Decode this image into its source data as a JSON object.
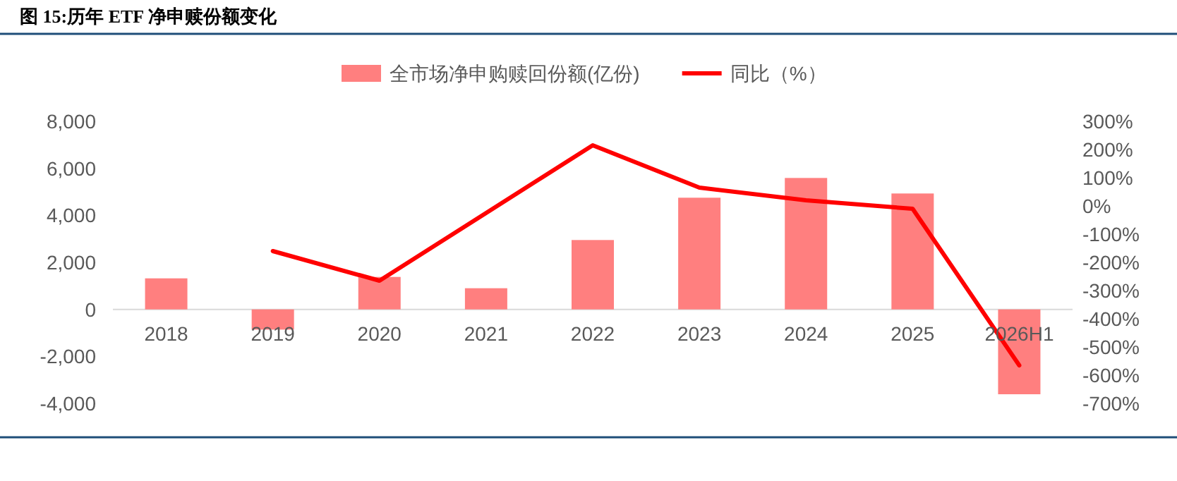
{
  "chart_data": {
    "type": "bar",
    "title": "图 15:历年 ETF 净申赎份额变化",
    "categories": [
      "2018",
      "2019",
      "2020",
      "2021",
      "2022",
      "2023",
      "2024",
      "2025",
      "2026H1"
    ],
    "series": [
      {
        "name": "全市场净申购赎回份额(亿份)",
        "color": "#ff7f7f",
        "values": [
          1320,
          -860,
          1380,
          900,
          2950,
          4750,
          5590,
          4930,
          -3610
        ]
      },
      {
        "name": "同比（%）",
        "type": "line",
        "axis": "y2",
        "color": "#ff0000",
        "values": [
          null,
          -160,
          -265,
          -25,
          215,
          65,
          20,
          -10,
          -565
        ]
      }
    ],
    "ylim": [
      -4000,
      8000
    ],
    "yticks": [
      {
        "value": -4000,
        "label": "-4,000"
      },
      {
        "value": -2000,
        "label": "-2,000"
      },
      0,
      {
        "value": 2000,
        "label": "2,000"
      },
      {
        "value": 4000,
        "label": "4,000"
      },
      {
        "value": 6000,
        "label": "6,000"
      },
      {
        "value": 8000,
        "label": "8,000"
      }
    ],
    "y2lim": [
      -700,
      300
    ],
    "y2ticks": [
      {
        "value": -700,
        "label": "-700%"
      },
      {
        "value": -600,
        "label": "-600%"
      },
      {
        "value": -500,
        "label": "-500%"
      },
      {
        "value": -400,
        "label": "-400%"
      },
      {
        "value": -300,
        "label": "-300%"
      },
      {
        "value": -200,
        "label": "-200%"
      },
      {
        "value": -100,
        "label": "-100%"
      },
      {
        "value": 0,
        "label": "0%"
      },
      {
        "value": 100,
        "label": "100%"
      },
      {
        "value": 200,
        "label": "200%"
      },
      {
        "value": 300,
        "label": "300%"
      }
    ],
    "legend": "top",
    "grid": false
  }
}
